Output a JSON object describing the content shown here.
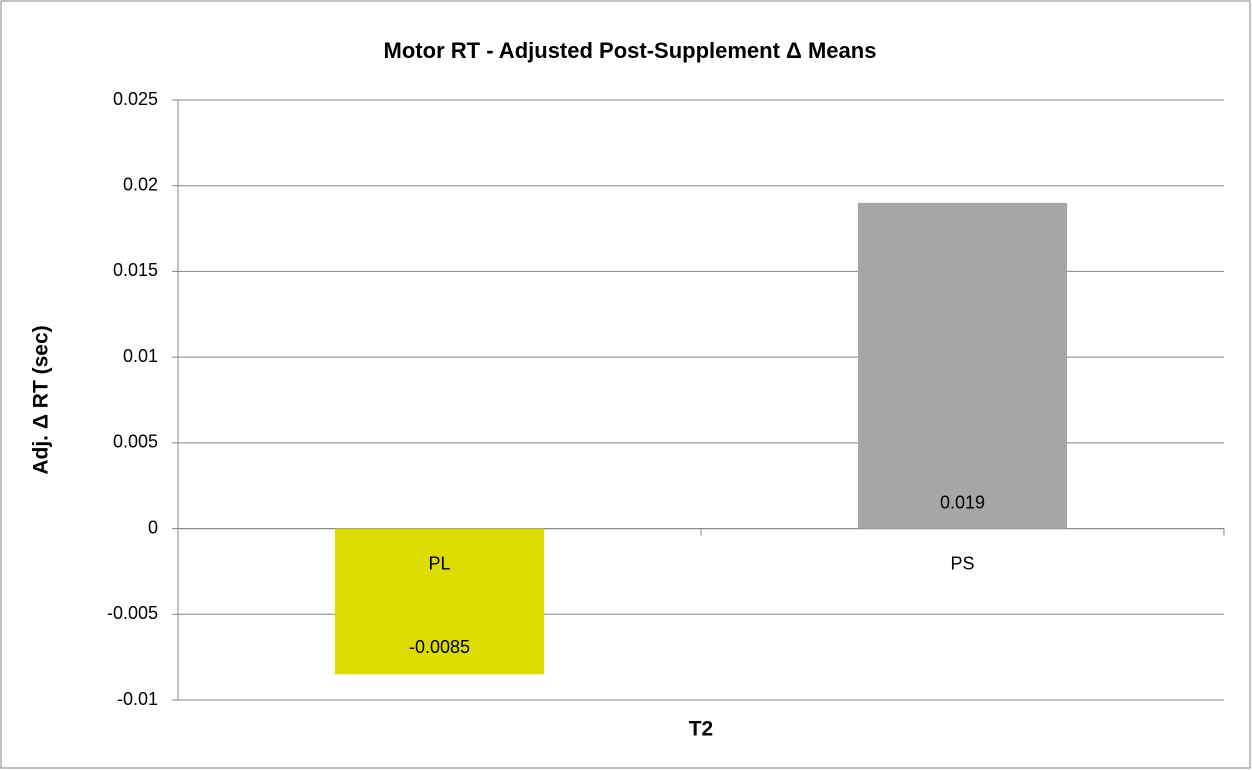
{
  "chart_data": {
    "type": "bar",
    "title": "Motor RT - Adjusted Post-Supplement Δ Means",
    "y_label": "Adj. Δ RT (sec)",
    "x_label": "T2",
    "categories": [
      "PL",
      "PS"
    ],
    "values": [
      -0.0085,
      0.019
    ],
    "colors": [
      "#dcdc00",
      "#a6a6a6"
    ],
    "ylim": [
      -0.01,
      0.025
    ],
    "yticks": [
      -0.01,
      -0.005,
      0,
      0.005,
      0.01,
      0.015,
      0.02,
      0.025
    ],
    "grid": true
  }
}
